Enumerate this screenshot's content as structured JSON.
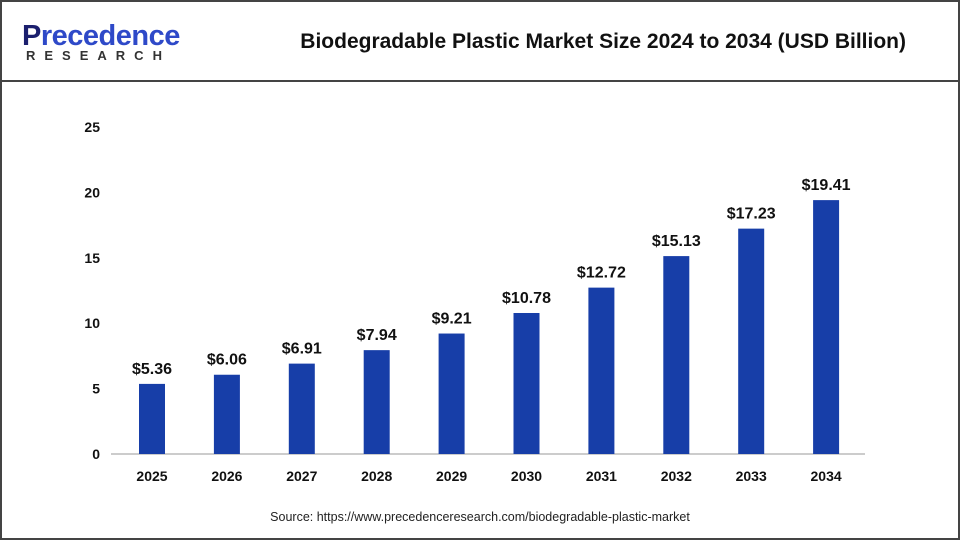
{
  "logo": {
    "brand": "Precedence",
    "sub": "RESEARCH"
  },
  "chart_data": {
    "type": "bar",
    "title": "Biodegradable Plastic Market Size 2024 to 2034 (USD Billion)",
    "categories": [
      "2025",
      "2026",
      "2027",
      "2028",
      "2029",
      "2030",
      "2031",
      "2032",
      "2033",
      "2034"
    ],
    "values": [
      5.36,
      6.06,
      6.91,
      7.94,
      9.21,
      10.78,
      12.72,
      15.13,
      17.23,
      19.41
    ],
    "data_labels": [
      "$5.36",
      "$6.06",
      "$6.91",
      "$7.94",
      "$9.21",
      "$10.78",
      "$12.72",
      "$15.13",
      "$17.23",
      "$19.41"
    ],
    "xlabel": "",
    "ylabel": "",
    "ylim": [
      0,
      25
    ],
    "yticks": [
      "0",
      "5",
      "10",
      "15",
      "20",
      "25"
    ],
    "grid": false,
    "bar_color": "#173ea8"
  },
  "source": "Source: https://www.precedenceresearch.com/biodegradable-plastic-market"
}
